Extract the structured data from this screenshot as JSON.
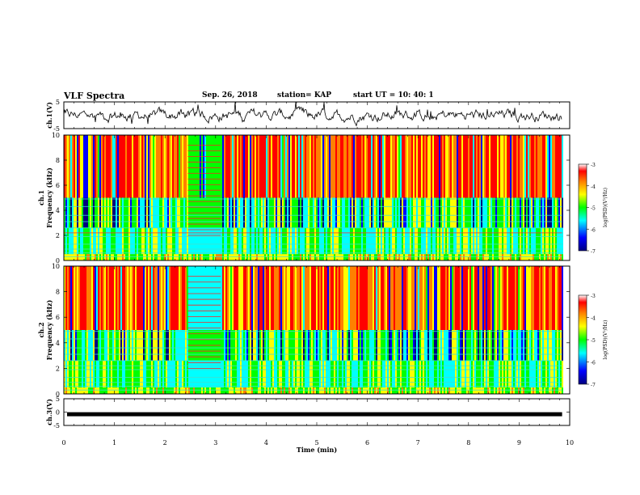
{
  "header": {
    "title": "VLF Spectra",
    "date": "Sep. 26, 2018",
    "station": "station= KAP",
    "start": "start  UT  =   10: 40: 1"
  },
  "chart_data": {
    "type": "heatmap",
    "panels": [
      {
        "id": "ch1_waveform",
        "type": "line",
        "ylabel": "ch.1(V)",
        "ylim": [
          -5,
          5
        ],
        "yticks": [
          "5",
          "-5"
        ]
      },
      {
        "id": "ch1_spectrogram",
        "type": "heatmap",
        "ylabel": "Frequency (kHz)",
        "ylabel_prefix": "ch.1",
        "ylim": [
          0,
          10
        ],
        "yticks": [
          "0",
          "2",
          "4",
          "6",
          "8",
          "10"
        ],
        "colorbar": {
          "label": "log(PSD)(V²/Hz)",
          "ticks": [
            "-3",
            "-4",
            "-5",
            "-6",
            "-7"
          ],
          "range": [
            -7,
            -3
          ]
        }
      },
      {
        "id": "ch2_spectrogram",
        "type": "heatmap",
        "ylabel": "Frequency (kHz)",
        "ylabel_prefix": "ch.2",
        "ylim": [
          0,
          10
        ],
        "yticks": [
          "0",
          "2",
          "4",
          "6",
          "8",
          "10"
        ],
        "colorbar": {
          "label": "log(PSD)(V²/Hz)",
          "ticks": [
            "-3",
            "-4",
            "-5",
            "-6",
            "-7"
          ],
          "range": [
            -7,
            -3
          ]
        }
      },
      {
        "id": "ch3_waveform",
        "type": "line",
        "ylabel": "ch.3(V)",
        "ylim": [
          -5,
          5
        ],
        "yticks": [
          "5",
          "0",
          "-5"
        ],
        "level": -0.8
      }
    ],
    "xlabel": "Time  (min)",
    "xlim": [
      0,
      10
    ],
    "xticks": [
      "0",
      "1",
      "2",
      "3",
      "4",
      "5",
      "6",
      "7",
      "8",
      "9",
      "10"
    ],
    "data_end_min": 9.85,
    "interference_segment_min": [
      2.45,
      3.1
    ],
    "colormap": [
      "#000080",
      "#0000ff",
      "#00ffff",
      "#00ff00",
      "#ffff00",
      "#ff8000",
      "#ff0000",
      "#ffffff"
    ]
  }
}
